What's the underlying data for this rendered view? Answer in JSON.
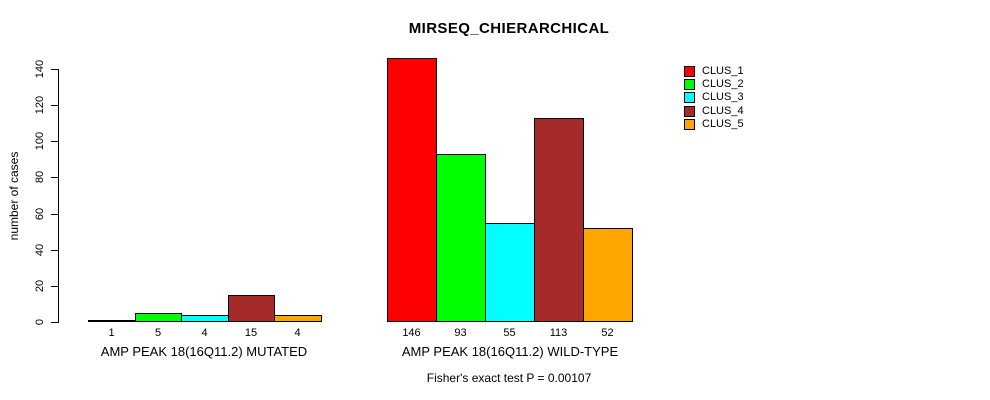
{
  "title": "MIRSEQ_CHIERARCHICAL",
  "chart_data": {
    "type": "bar",
    "title": "MIRSEQ_CHIERARCHICAL",
    "xlabel": "",
    "ylabel": "number of cases",
    "ylim": [
      0,
      140
    ],
    "yticks": [
      0,
      20,
      40,
      60,
      80,
      100,
      120,
      140
    ],
    "grid": false,
    "plot_frame": false,
    "legend_position": "top-right",
    "series": [
      {
        "name": "CLUS_1",
        "color": "#FF0000",
        "values": [
          1,
          146
        ]
      },
      {
        "name": "CLUS_2",
        "color": "#00FF00",
        "values": [
          5,
          93
        ]
      },
      {
        "name": "CLUS_3",
        "color": "#00FFFF",
        "values": [
          4,
          55
        ]
      },
      {
        "name": "CLUS_4",
        "color": "#A52A2A",
        "values": [
          15,
          113
        ]
      },
      {
        "name": "CLUS_5",
        "color": "#FFA500",
        "values": [
          4,
          52
        ]
      }
    ],
    "groups": [
      {
        "label": "AMP PEAK 18(16Q11.2) MUTATED",
        "values": [
          1,
          5,
          4,
          15,
          4
        ]
      },
      {
        "label": "AMP PEAK 18(16Q11.2) WILD-TYPE",
        "values": [
          146,
          93,
          55,
          113,
          52
        ]
      }
    ],
    "bar_value_labels": [
      [
        "1",
        "5",
        "4",
        "15",
        "4"
      ],
      [
        "146",
        "93",
        "55",
        "113",
        "52"
      ]
    ],
    "annotation": "Fisher's exact test P = 0.00107"
  },
  "colors": {
    "foreground": "#000000",
    "background": "#FFFFFF"
  }
}
